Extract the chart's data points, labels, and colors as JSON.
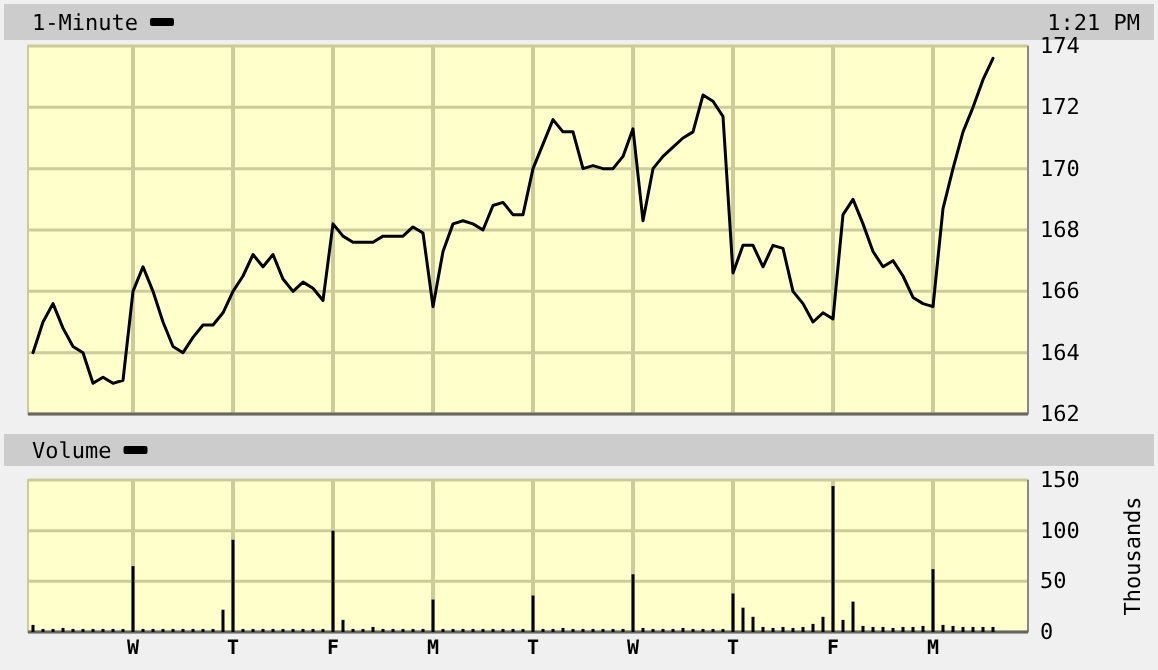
{
  "chart_data": [
    {
      "type": "line",
      "annotations": [
        "1:21 PM"
      ],
      "legend": "top left",
      "grid": true,
      "tick_labels": "y",
      "line_style": "solid",
      "categories": [
        null,
        null,
        null,
        null,
        null,
        null,
        null,
        null,
        null,
        null,
        null,
        null,
        null,
        null,
        null,
        null,
        null,
        null,
        null,
        null,
        null,
        null,
        null,
        null,
        null,
        null,
        null,
        null,
        null,
        null,
        null,
        null,
        null,
        null,
        null,
        null,
        null,
        null,
        null,
        null,
        null,
        null,
        null,
        null,
        null,
        null,
        null,
        null,
        null,
        null,
        null,
        null,
        null,
        null,
        null,
        null,
        null,
        null,
        null,
        null,
        null,
        null,
        null,
        null,
        null,
        null,
        null,
        null,
        null,
        null,
        null,
        null,
        null,
        null,
        null,
        null,
        null,
        null,
        null,
        null,
        null,
        null,
        null,
        null,
        null,
        null,
        null,
        null,
        null,
        null,
        null,
        null,
        null,
        null,
        null,
        null,
        null,
        null,
        null,
        null
      ],
      "ylim": [
        162,
        174
      ],
      "yticks": [
        162,
        164,
        166,
        168,
        170,
        172,
        174
      ],
      "series": [
        {
          "name": "1-Minute",
          "color": "#000000",
          "values": [
            164.0,
            165.0,
            165.6,
            164.8,
            164.2,
            164.0,
            163.0,
            163.2,
            163.0,
            163.1,
            166.0,
            166.8,
            166.0,
            165.0,
            164.2,
            164.0,
            164.5,
            164.9,
            164.9,
            165.3,
            166.0,
            166.5,
            167.2,
            166.8,
            167.2,
            166.4,
            166.0,
            166.3,
            166.1,
            165.7,
            168.2,
            167.8,
            167.6,
            167.6,
            167.6,
            167.8,
            167.8,
            167.8,
            168.1,
            167.9,
            165.5,
            167.3,
            168.2,
            168.3,
            168.2,
            168.0,
            168.8,
            168.9,
            168.5,
            168.5,
            170.0,
            170.8,
            171.6,
            171.2,
            171.2,
            170.0,
            170.1,
            170.0,
            170.0,
            170.4,
            171.3,
            168.3,
            170.0,
            170.4,
            170.7,
            171.0,
            171.2,
            172.4,
            172.2,
            171.7,
            166.6,
            167.5,
            167.5,
            166.8,
            167.5,
            167.4,
            166.0,
            165.6,
            165.0,
            165.3,
            165.1,
            168.5,
            169.0,
            168.2,
            167.3,
            166.8,
            167.0,
            166.5,
            165.8,
            165.6,
            165.5,
            168.7,
            170.0,
            171.2,
            172.0,
            172.9,
            173.6,
            null,
            null,
            null
          ]
        }
      ]
    },
    {
      "type": "bar",
      "ylabel": "Thousands",
      "legend": "top left",
      "grid": true,
      "categories": [
        null,
        null,
        null,
        null,
        null,
        null,
        null,
        null,
        null,
        null,
        "W",
        null,
        null,
        null,
        null,
        null,
        null,
        null,
        null,
        null,
        "T",
        null,
        null,
        null,
        null,
        null,
        null,
        null,
        null,
        null,
        "F",
        null,
        null,
        null,
        null,
        null,
        null,
        null,
        null,
        null,
        "M",
        null,
        null,
        null,
        null,
        null,
        null,
        null,
        null,
        null,
        "T",
        null,
        null,
        null,
        null,
        null,
        null,
        null,
        null,
        null,
        "W",
        null,
        null,
        null,
        null,
        null,
        null,
        null,
        null,
        null,
        "T",
        null,
        null,
        null,
        null,
        null,
        null,
        null,
        null,
        null,
        "F",
        null,
        null,
        null,
        null,
        null,
        null,
        null,
        null,
        null,
        "M",
        null,
        null,
        null,
        null,
        null,
        null,
        null,
        null,
        null
      ],
      "ylim": [
        0,
        150
      ],
      "yticks": [
        0,
        50,
        100,
        150
      ],
      "series": [
        {
          "name": "Volume",
          "color": "#000000",
          "values": [
            7,
            3,
            3,
            4,
            3,
            3,
            3,
            3,
            3,
            3,
            65,
            3,
            3,
            3,
            3,
            3,
            3,
            3,
            3,
            22,
            91,
            3,
            3,
            3,
            3,
            3,
            3,
            3,
            3,
            3,
            100,
            12,
            3,
            3,
            5,
            3,
            3,
            3,
            3,
            3,
            32,
            3,
            3,
            3,
            3,
            3,
            3,
            3,
            3,
            3,
            36,
            3,
            3,
            4,
            3,
            3,
            3,
            3,
            3,
            3,
            57,
            4,
            3,
            3,
            3,
            4,
            3,
            3,
            3,
            3,
            38,
            24,
            15,
            5,
            4,
            5,
            4,
            5,
            8,
            15,
            144,
            12,
            30,
            6,
            5,
            5,
            4,
            5,
            5,
            6,
            62,
            7,
            6,
            5,
            5,
            5,
            5,
            null,
            null,
            null
          ]
        }
      ]
    }
  ]
}
